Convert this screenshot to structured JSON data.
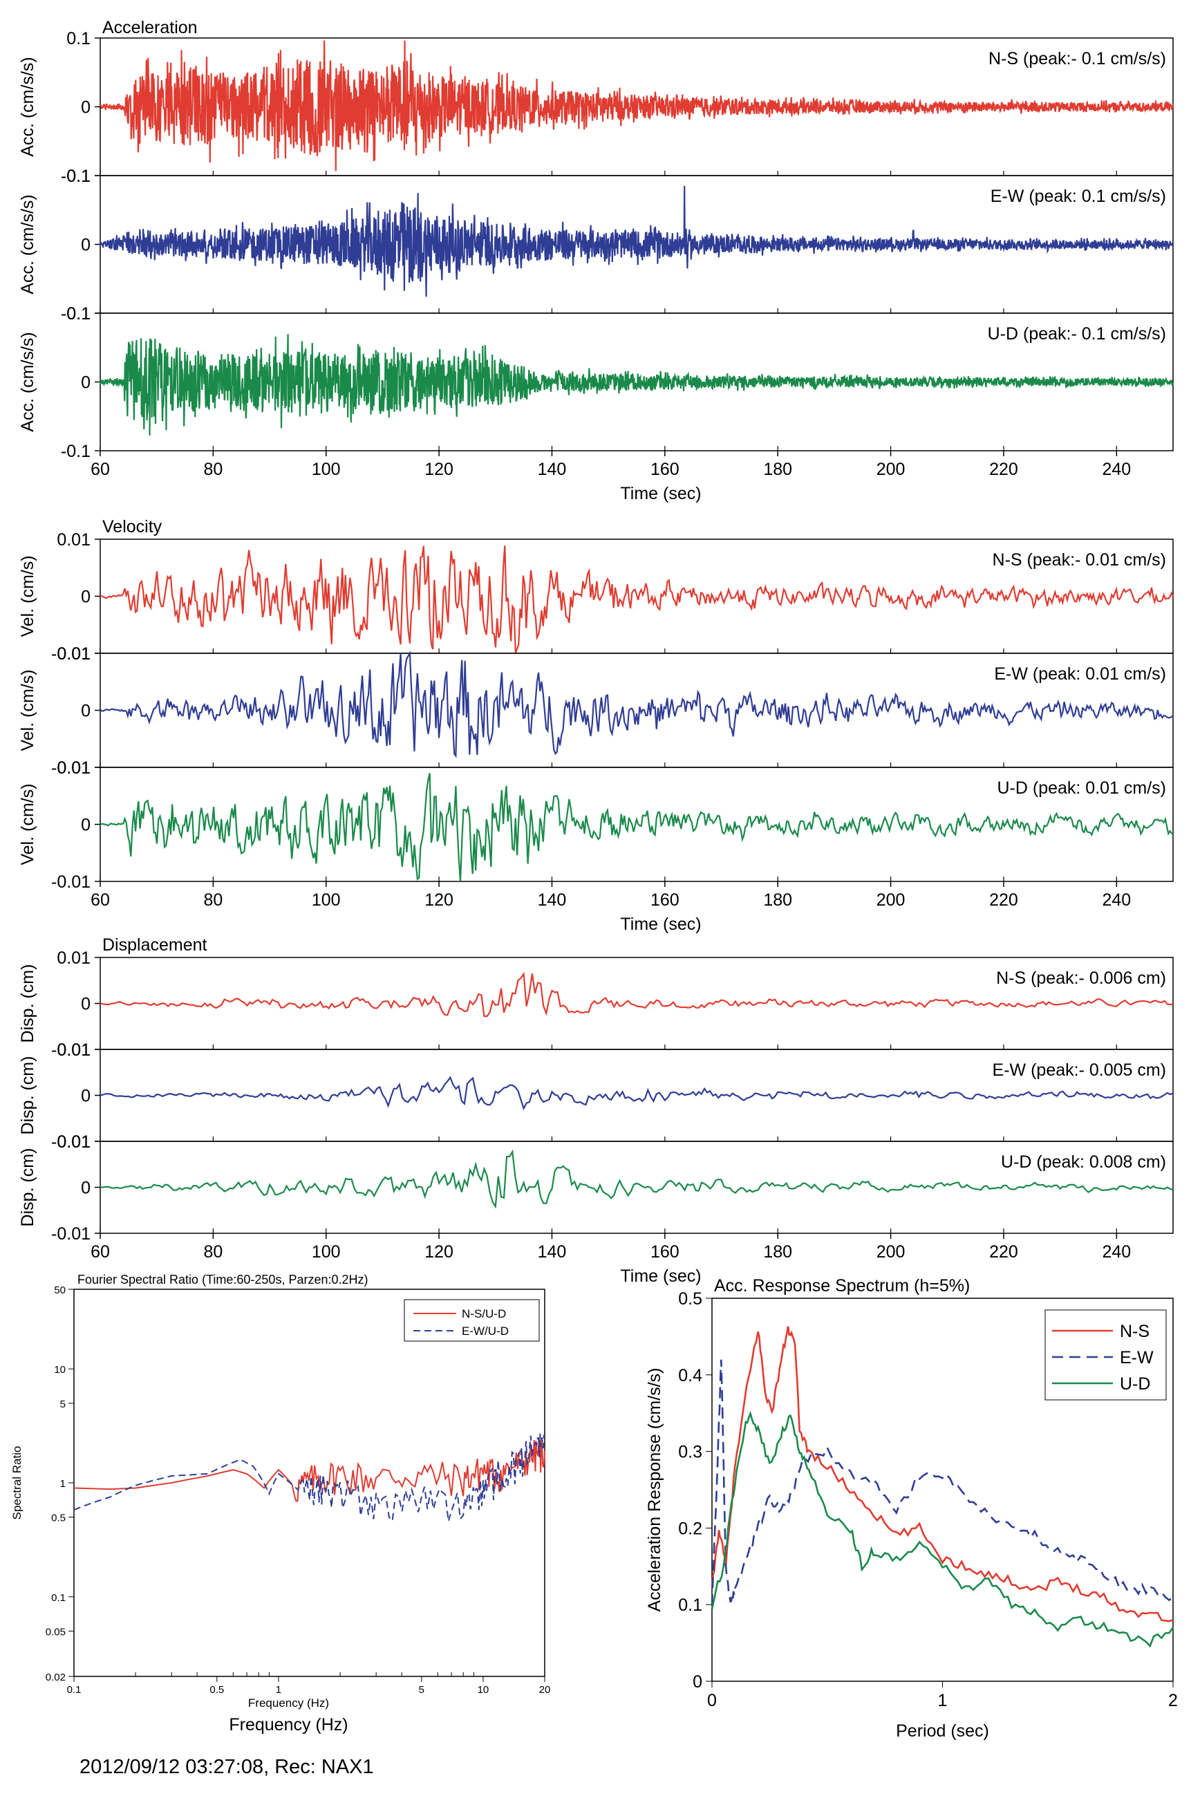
{
  "footer": "2012/09/12 03:27:08, Rec: NAX1",
  "colors": {
    "ns": "#e03c31",
    "ew": "#2f3d95",
    "ud": "#1a8a4a"
  },
  "chart_data": [
    {
      "type": "line",
      "title": "Acceleration",
      "xlabel": "Time (sec)",
      "ylabel": "Acc. (cm/s/s)",
      "xlim": [
        60,
        250
      ],
      "ylim": [
        -0.1,
        0.1
      ],
      "xticks": [
        "60",
        "80",
        "100",
        "120",
        "140",
        "160",
        "180",
        "200",
        "220",
        "240"
      ],
      "yticks": [
        "0.1",
        "0",
        "-0.1"
      ],
      "series": [
        {
          "name": "N-S (peak:- 0.1 cm/s/s)",
          "color": "#e03c31",
          "envelope": [
            [
              60,
              0.003
            ],
            [
              64,
              0.005
            ],
            [
              66,
              0.045
            ],
            [
              70,
              0.05
            ],
            [
              76,
              0.06
            ],
            [
              82,
              0.05
            ],
            [
              90,
              0.05
            ],
            [
              98,
              0.075
            ],
            [
              104,
              0.06
            ],
            [
              110,
              0.055
            ],
            [
              114,
              0.07
            ],
            [
              120,
              0.045
            ],
            [
              130,
              0.035
            ],
            [
              140,
              0.025
            ],
            [
              150,
              0.02
            ],
            [
              160,
              0.015
            ],
            [
              180,
              0.01
            ],
            [
              200,
              0.008
            ],
            [
              250,
              0.006
            ]
          ]
        },
        {
          "name": "E-W (peak: 0.1 cm/s/s)",
          "color": "#2f3d95",
          "envelope": [
            [
              60,
              0.004
            ],
            [
              66,
              0.015
            ],
            [
              80,
              0.02
            ],
            [
              90,
              0.025
            ],
            [
              100,
              0.03
            ],
            [
              110,
              0.045
            ],
            [
              113,
              0.065
            ],
            [
              118,
              0.05
            ],
            [
              125,
              0.035
            ],
            [
              135,
              0.025
            ],
            [
              150,
              0.02
            ],
            [
              160,
              0.02
            ],
            [
              164,
              0.015
            ],
            [
              180,
              0.01
            ],
            [
              200,
              0.008
            ],
            [
              250,
              0.006
            ]
          ],
          "spikes": [
            [
              163.5,
              0.085
            ],
            [
              164,
              -0.035
            ],
            [
              204,
              0.02
            ]
          ]
        },
        {
          "name": "U-D (peak:- 0.1 cm/s/s)",
          "color": "#1a8a4a",
          "envelope": [
            [
              60,
              0.003
            ],
            [
              64,
              0.005
            ],
            [
              65,
              0.06
            ],
            [
              68,
              0.07
            ],
            [
              74,
              0.045
            ],
            [
              80,
              0.04
            ],
            [
              90,
              0.045
            ],
            [
              97,
              0.05
            ],
            [
              105,
              0.04
            ],
            [
              112,
              0.045
            ],
            [
              120,
              0.04
            ],
            [
              130,
              0.035
            ],
            [
              136,
              0.025
            ],
            [
              137,
              0.015
            ],
            [
              150,
              0.013
            ],
            [
              170,
              0.009
            ],
            [
              200,
              0.007
            ],
            [
              250,
              0.005
            ]
          ]
        }
      ]
    },
    {
      "type": "line",
      "title": "Velocity",
      "xlabel": "Time (sec)",
      "ylabel": "Vel. (cm/s)",
      "xlim": [
        60,
        250
      ],
      "ylim": [
        -0.01,
        0.01
      ],
      "xticks": [
        "60",
        "80",
        "100",
        "120",
        "140",
        "160",
        "180",
        "200",
        "220",
        "240"
      ],
      "yticks": [
        "0.01",
        "0",
        "-0.01"
      ],
      "series": [
        {
          "name": "N-S (peak:- 0.01 cm/s)",
          "color": "#e03c31",
          "envelope": [
            [
              60,
              0.0002
            ],
            [
              64,
              0.0003
            ],
            [
              65,
              0.004
            ],
            [
              75,
              0.004
            ],
            [
              85,
              0.005
            ],
            [
              95,
              0.005
            ],
            [
              100,
              0.007
            ],
            [
              110,
              0.006
            ],
            [
              115,
              0.008
            ],
            [
              125,
              0.007
            ],
            [
              133,
              0.008
            ],
            [
              140,
              0.004
            ],
            [
              160,
              0.002
            ],
            [
              200,
              0.0015
            ],
            [
              250,
              0.0012
            ]
          ]
        },
        {
          "name": "E-W (peak: 0.01 cm/s)",
          "color": "#2f3d95",
          "envelope": [
            [
              60,
              0.0002
            ],
            [
              64,
              0.0003
            ],
            [
              65,
              0.0015
            ],
            [
              80,
              0.002
            ],
            [
              95,
              0.0035
            ],
            [
              105,
              0.005
            ],
            [
              110,
              0.009
            ],
            [
              118,
              0.009
            ],
            [
              128,
              0.008
            ],
            [
              135,
              0.006
            ],
            [
              145,
              0.004
            ],
            [
              160,
              0.003
            ],
            [
              200,
              0.0018
            ],
            [
              250,
              0.0012
            ]
          ]
        },
        {
          "name": "U-D (peak: 0.01 cm/s)",
          "color": "#1a8a4a",
          "envelope": [
            [
              60,
              0.0002
            ],
            [
              64,
              0.0003
            ],
            [
              65,
              0.004
            ],
            [
              80,
              0.004
            ],
            [
              95,
              0.005
            ],
            [
              105,
              0.006
            ],
            [
              115,
              0.007
            ],
            [
              120,
              0.008
            ],
            [
              130,
              0.007
            ],
            [
              136,
              0.006
            ],
            [
              140,
              0.003
            ],
            [
              160,
              0.002
            ],
            [
              200,
              0.0015
            ],
            [
              250,
              0.0012
            ]
          ]
        }
      ]
    },
    {
      "type": "line",
      "title": "Displacement",
      "xlabel": "Time (sec)",
      "ylabel": "Disp. (cm)",
      "xlim": [
        60,
        250
      ],
      "ylim": [
        -0.01,
        0.01
      ],
      "xticks": [
        "60",
        "80",
        "100",
        "120",
        "140",
        "160",
        "180",
        "200",
        "220",
        "240"
      ],
      "yticks": [
        "0.01",
        "0",
        "-0.01"
      ],
      "series": [
        {
          "name": "N-S (peak:- 0.006 cm)",
          "color": "#e03c31",
          "envelope": [
            [
              60,
              0.0002
            ],
            [
              70,
              0.0005
            ],
            [
              85,
              0.001
            ],
            [
              100,
              0.001
            ],
            [
              120,
              0.0015
            ],
            [
              126,
              0.0025
            ],
            [
              132,
              0.005
            ],
            [
              136,
              0.005
            ],
            [
              145,
              0.0012
            ],
            [
              180,
              0.0008
            ],
            [
              250,
              0.0006
            ]
          ]
        },
        {
          "name": "E-W (peak:- 0.005 cm)",
          "color": "#2f3d95",
          "envelope": [
            [
              60,
              0.0002
            ],
            [
              80,
              0.0005
            ],
            [
              105,
              0.001
            ],
            [
              112,
              0.002
            ],
            [
              120,
              0.003
            ],
            [
              125,
              0.003
            ],
            [
              135,
              0.002
            ],
            [
              150,
              0.0015
            ],
            [
              180,
              0.0008
            ],
            [
              250,
              0.0006
            ]
          ]
        },
        {
          "name": "U-D (peak: 0.008 cm)",
          "color": "#1a8a4a",
          "envelope": [
            [
              60,
              0.0002
            ],
            [
              80,
              0.0008
            ],
            [
              100,
              0.0015
            ],
            [
              115,
              0.002
            ],
            [
              120,
              0.003
            ],
            [
              128,
              0.005
            ],
            [
              132,
              0.007
            ],
            [
              136,
              0.004
            ],
            [
              150,
              0.0015
            ],
            [
              180,
              0.001
            ],
            [
              250,
              0.0006
            ]
          ]
        }
      ]
    },
    {
      "type": "line",
      "title": "Fourier Spectral Ratio (Time:60-250s, Parzen:0.2Hz)",
      "xlabel": "Frequency (Hz)",
      "ylabel": "Spectral Ratio",
      "xscale": "log",
      "yscale": "log",
      "xlim": [
        0.1,
        20
      ],
      "ylim": [
        0.02,
        50
      ],
      "xticks": [
        "0.1",
        "0.5",
        "1",
        "5",
        "10",
        "20"
      ],
      "yticks": [
        "50",
        "10",
        "5",
        "1",
        "0.5",
        "0.1",
        "0.05",
        "0.02"
      ],
      "legend": "top-right",
      "series": [
        {
          "name": "N-S/U-D",
          "color": "#e03c31",
          "dash": "solid",
          "x": [
            0.1,
            0.15,
            0.2,
            0.3,
            0.45,
            0.6,
            0.7,
            0.85,
            1,
            1.2,
            1.5,
            2,
            3,
            5,
            8,
            10,
            12,
            15,
            18,
            20
          ],
          "y": [
            0.9,
            0.88,
            0.9,
            1.0,
            1.15,
            1.3,
            1.2,
            0.9,
            1.3,
            0.9,
            1.1,
            1.2,
            1.1,
            1.2,
            1.1,
            1.3,
            1.2,
            1.5,
            1.8,
            1.9
          ]
        },
        {
          "name": "E-W/U-D",
          "color": "#2f3d95",
          "dash": "dashed",
          "x": [
            0.1,
            0.15,
            0.2,
            0.3,
            0.45,
            0.65,
            0.75,
            0.9,
            1,
            1.3,
            1.6,
            2,
            3,
            5,
            8,
            10,
            12,
            15,
            18,
            20
          ],
          "y": [
            0.58,
            0.75,
            0.95,
            1.15,
            1.2,
            1.6,
            1.4,
            0.8,
            1.2,
            0.8,
            0.95,
            0.8,
            0.7,
            0.7,
            0.65,
            0.85,
            1.2,
            1.5,
            2.2,
            2.3
          ]
        }
      ]
    },
    {
      "type": "line",
      "title": "Acc. Response Spectrum (h=5%)",
      "xlabel": "Period (sec)",
      "ylabel": "Acceleration Response (cm/s/s)",
      "xlim": [
        0,
        2
      ],
      "ylim": [
        0,
        0.5
      ],
      "xticks": [
        "0",
        "1",
        "2"
      ],
      "yticks": [
        "0",
        "0.1",
        "0.2",
        "0.3",
        "0.4",
        "0.5"
      ],
      "legend": "top-right",
      "series": [
        {
          "name": "N-S",
          "color": "#e03c31",
          "dash": "solid",
          "x": [
            0,
            0.03,
            0.06,
            0.1,
            0.15,
            0.2,
            0.23,
            0.26,
            0.3,
            0.33,
            0.36,
            0.38,
            0.42,
            0.5,
            0.6,
            0.7,
            0.8,
            0.9,
            1.0,
            1.1,
            1.2,
            1.3,
            1.4,
            1.5,
            1.6,
            1.7,
            1.8,
            1.9,
            2.0
          ],
          "y": [
            0.12,
            0.2,
            0.15,
            0.28,
            0.38,
            0.46,
            0.38,
            0.35,
            0.42,
            0.46,
            0.44,
            0.33,
            0.3,
            0.28,
            0.25,
            0.22,
            0.19,
            0.2,
            0.16,
            0.15,
            0.14,
            0.13,
            0.12,
            0.13,
            0.12,
            0.11,
            0.09,
            0.09,
            0.08
          ]
        },
        {
          "name": "E-W",
          "color": "#2f3d95",
          "dash": "dashed",
          "x": [
            0,
            0.02,
            0.04,
            0.06,
            0.08,
            0.1,
            0.15,
            0.2,
            0.25,
            0.3,
            0.35,
            0.4,
            0.5,
            0.6,
            0.7,
            0.8,
            0.9,
            1.0,
            1.1,
            1.2,
            1.3,
            1.4,
            1.5,
            1.6,
            1.7,
            1.8,
            1.9,
            2.0
          ],
          "y": [
            0.1,
            0.25,
            0.42,
            0.15,
            0.1,
            0.12,
            0.16,
            0.2,
            0.24,
            0.22,
            0.25,
            0.29,
            0.3,
            0.27,
            0.26,
            0.22,
            0.27,
            0.27,
            0.24,
            0.22,
            0.2,
            0.19,
            0.17,
            0.16,
            0.14,
            0.12,
            0.12,
            0.11
          ]
        },
        {
          "name": "U-D",
          "color": "#1a8a4a",
          "dash": "solid",
          "x": [
            0,
            0.05,
            0.08,
            0.12,
            0.16,
            0.2,
            0.25,
            0.3,
            0.34,
            0.38,
            0.42,
            0.5,
            0.6,
            0.65,
            0.7,
            0.8,
            0.9,
            1.0,
            1.1,
            1.2,
            1.3,
            1.4,
            1.5,
            1.6,
            1.7,
            1.8,
            1.9,
            2.0
          ],
          "y": [
            0.1,
            0.15,
            0.22,
            0.3,
            0.35,
            0.33,
            0.28,
            0.32,
            0.35,
            0.3,
            0.28,
            0.22,
            0.2,
            0.15,
            0.17,
            0.16,
            0.18,
            0.15,
            0.12,
            0.13,
            0.1,
            0.09,
            0.07,
            0.08,
            0.07,
            0.06,
            0.05,
            0.07
          ]
        }
      ]
    }
  ]
}
